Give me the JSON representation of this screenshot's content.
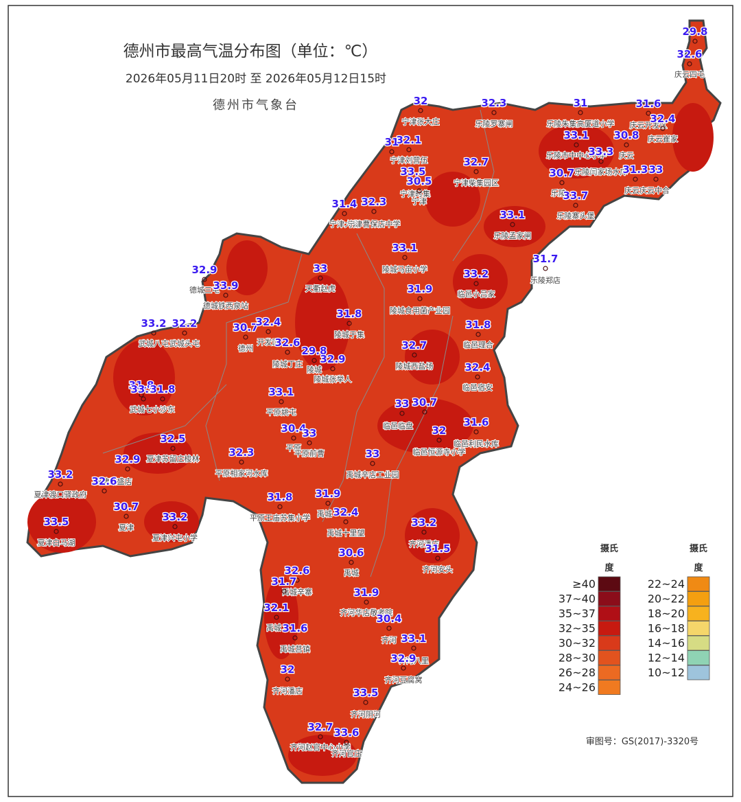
{
  "header": {
    "title": "德州市最高气温分布图（单位：℃）",
    "subtitle": "2026年05月11日20时  至  2026年05月12日15时",
    "agency": "德州市气象台"
  },
  "stations": [
    {
      "value": 29.8
    },
    {
      "value": 32.6,
      "name": "庆云四屯"
    },
    {
      "value": 32,
      "name": "宁津张大庄"
    },
    {
      "value": 32.3,
      "name": "乐陵罗寨闸"
    },
    {
      "value": 31,
      "name": "乐陵朱集高厦道小学"
    },
    {
      "value": 31.6,
      "name": "庆云开发区"
    },
    {
      "value": 32.4,
      "name": "庆云崔家"
    },
    {
      "value": 32.1,
      "name": "宁津刘营伍"
    },
    {
      "value": 31
    },
    {
      "value": 33.1,
      "name": "乐陵市中中心小学"
    },
    {
      "value": 30.8,
      "name": "庆云"
    },
    {
      "value": 33.3,
      "name": "乐陵闫家场水库"
    },
    {
      "value": 32.7,
      "name": "宁津柴集园区"
    },
    {
      "value": 33.5,
      "name": "宁津时集"
    },
    {
      "value": 30.5,
      "name": "宁津"
    },
    {
      "value": 30.7,
      "name": "乐陵"
    },
    {
      "value": 31.3
    },
    {
      "value": 33,
      "name": "庆云庆云中合"
    },
    {
      "value": 33.7,
      "name": "乐陵寨头堡"
    },
    {
      "value": 31.4,
      "name": "宁津大曹"
    },
    {
      "value": 32.3,
      "name": "宁津曹保店中学"
    },
    {
      "value": 33.1,
      "name": "乐陵孟家闸"
    },
    {
      "value": 33.1,
      "name": "陵城马亩小学"
    },
    {
      "value": 33,
      "name": "天衢赵虎"
    },
    {
      "value": 31.7,
      "name": "乐陵郑店"
    },
    {
      "value": 32.9,
      "name": "德城三屯"
    },
    {
      "value": 33.9,
      "name": "德城铁西泉站"
    },
    {
      "value": 33.2,
      "name": "临邑小吕家"
    },
    {
      "value": 31.9,
      "name": "陵城食用菌产业园"
    },
    {
      "value": 31.8,
      "name": "陵城于集"
    },
    {
      "value": 31.8,
      "name": "临邑理合"
    },
    {
      "value": 33.2,
      "name": "武城八屯"
    },
    {
      "value": 32.2,
      "name": "武城头屯"
    },
    {
      "value": 30.7,
      "name": "德州"
    },
    {
      "value": 32.4,
      "name": "开发区"
    },
    {
      "value": 32.6,
      "name": "陵城丁庄"
    },
    {
      "value": 29.8,
      "name": "陵城"
    },
    {
      "value": 32.9,
      "name": "陵城张举人"
    },
    {
      "value": 32.7,
      "name": "陵城西盐场"
    },
    {
      "value": 32.4,
      "name": "临邑宿安"
    },
    {
      "value": 31.8
    },
    {
      "value": 33.2
    },
    {
      "value": 31.8,
      "name": "武城七小沙东"
    },
    {
      "value": 33.1,
      "name": "平原姚屯"
    },
    {
      "value": 33
    },
    {
      "value": 30.7,
      "name": "临邑临盘"
    },
    {
      "value": 31.6,
      "name": "临邑利民水库"
    },
    {
      "value": 30.4,
      "name": "平原"
    },
    {
      "value": 33,
      "name": "平原前曹"
    },
    {
      "value": 32,
      "name": "临邑恒源寺小学"
    },
    {
      "value": 32.5,
      "name": "夏津苏留庄梭林"
    },
    {
      "value": 32.3,
      "name": "平原相家河水库"
    },
    {
      "value": 33,
      "name": "禹城辛店工业园"
    },
    {
      "value": 32.9
    },
    {
      "value": 33.2,
      "name": "夏津渡口驿政府"
    },
    {
      "value": 32.6,
      "name": "夏津新盛店"
    },
    {
      "value": 30.7,
      "name": "夏津"
    },
    {
      "value": 31.8,
      "name": "平原王庙苏集小学"
    },
    {
      "value": 31.9,
      "name": "禹城"
    },
    {
      "value": 32.4,
      "name": "禹城十里望"
    },
    {
      "value": 33.5,
      "name": "夏津白马湖"
    },
    {
      "value": 33.2,
      "name": "夏津兴屯小学"
    },
    {
      "value": 33.2,
      "name": "齐河潘店"
    },
    {
      "value": 31.5,
      "name": "齐河安头"
    },
    {
      "value": 30.6,
      "name": "禹城"
    },
    {
      "value": 32.6,
      "name": "禹城辛寨"
    },
    {
      "value": 31.7
    },
    {
      "value": 31.9,
      "name": "齐河华店敬老院"
    },
    {
      "value": 32.1,
      "name": "禹城"
    },
    {
      "value": 30.4,
      "name": "齐河"
    },
    {
      "value": 31.6,
      "name": "禹城莒镇"
    },
    {
      "value": 33.1,
      "name": "齐河八里"
    },
    {
      "value": 32.9,
      "name": "齐河豆腐窝"
    },
    {
      "value": 32,
      "name": "齐河潘店"
    },
    {
      "value": 33.5,
      "name": "齐河阴河"
    },
    {
      "value": 32.7,
      "name": "齐河赵官中心小学"
    },
    {
      "value": 33.6,
      "name": "齐河官庄"
    }
  ],
  "legend": {
    "columns": [
      {
        "title": "摄氏度",
        "items": [
          {
            "label": "≥40",
            "color": "#5c0a12"
          },
          {
            "label": "37~40",
            "color": "#8b0d1a"
          },
          {
            "label": "35~37",
            "color": "#b00f16"
          },
          {
            "label": "32~35",
            "color": "#c71a10"
          },
          {
            "label": "30~32",
            "color": "#d93a1a"
          },
          {
            "label": "28~30",
            "color": "#e2531e"
          },
          {
            "label": "26~28",
            "color": "#ec6a22"
          },
          {
            "label": "24~26",
            "color": "#f07a20"
          }
        ]
      },
      {
        "title": "摄氏度",
        "items": [
          {
            "label": "22~24",
            "color": "#f08a14"
          },
          {
            "label": "20~22",
            "color": "#f49f10"
          },
          {
            "label": "18~20",
            "color": "#f7b21e"
          },
          {
            "label": "16~18",
            "color": "#f5d66a"
          },
          {
            "label": "14~16",
            "color": "#d6dc84"
          },
          {
            "label": "12~14",
            "color": "#8fd3b4"
          },
          {
            "label": "10~12",
            "color": "#9ec4dc"
          }
        ]
      }
    ]
  },
  "footer": {
    "review": "审图号：GS(2017)-3320号"
  }
}
